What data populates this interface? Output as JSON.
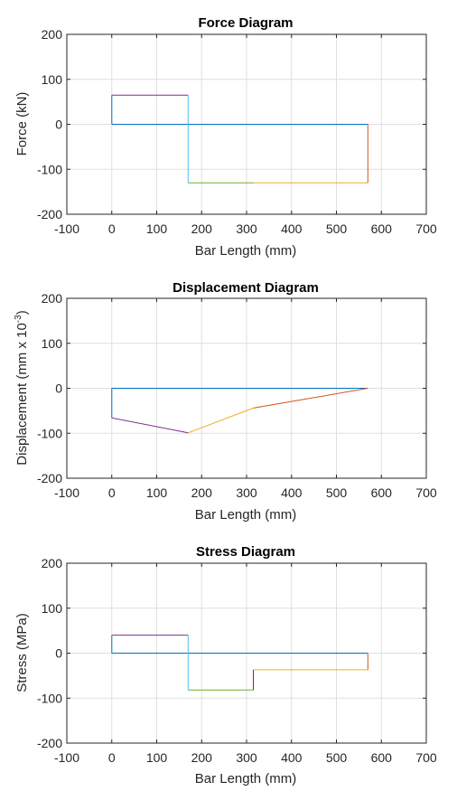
{
  "chart_data": [
    {
      "type": "line",
      "title": "Force Diagram",
      "xlabel": "Bar Length (mm)",
      "ylabel": "Force (kN)",
      "xlim": [
        -100,
        700
      ],
      "ylim": [
        -200,
        200
      ],
      "xticks": [
        "-100",
        "0",
        "100",
        "200",
        "300",
        "400",
        "500",
        "600",
        "700"
      ],
      "yticks": [
        "200",
        "100",
        "0",
        "-100",
        "-200"
      ],
      "grid": true,
      "series": [
        {
          "color": "#0072bd",
          "x": [
            0,
            570
          ],
          "y": [
            0,
            0
          ]
        },
        {
          "color": "#0072bd",
          "x": [
            0,
            0
          ],
          "y": [
            0,
            65
          ]
        },
        {
          "color": "#7e2f8e",
          "x": [
            0,
            170
          ],
          "y": [
            65,
            65
          ]
        },
        {
          "color": "#4dbeee",
          "x": [
            170,
            170
          ],
          "y": [
            65,
            -130
          ]
        },
        {
          "color": "#77ac30",
          "x": [
            170,
            315
          ],
          "y": [
            -130,
            -130
          ]
        },
        {
          "color": "#edb120",
          "x": [
            315,
            570
          ],
          "y": [
            -130,
            -130
          ]
        },
        {
          "color": "#d95319",
          "x": [
            570,
            570
          ],
          "y": [
            -130,
            0
          ]
        }
      ]
    },
    {
      "type": "line",
      "title": "Displacement Diagram",
      "xlabel": "Bar Length (mm)",
      "ylabel": "Displacement (mm x 10",
      "ylabel_sup": "-3",
      "ylabel_end": ")",
      "xlim": [
        -100,
        700
      ],
      "ylim": [
        -200,
        200
      ],
      "xticks": [
        "-100",
        "0",
        "100",
        "200",
        "300",
        "400",
        "500",
        "600",
        "700"
      ],
      "yticks": [
        "200",
        "100",
        "0",
        "-100",
        "-200"
      ],
      "grid": true,
      "series": [
        {
          "color": "#0072bd",
          "x": [
            0,
            570
          ],
          "y": [
            0,
            0
          ]
        },
        {
          "color": "#0072bd",
          "x": [
            0,
            0
          ],
          "y": [
            0,
            -66
          ]
        },
        {
          "color": "#7e2f8e",
          "x": [
            0,
            170
          ],
          "y": [
            -66,
            -99
          ]
        },
        {
          "color": "#edb120",
          "x": [
            170,
            315
          ],
          "y": [
            -99,
            -44
          ]
        },
        {
          "color": "#d95319",
          "x": [
            315,
            570
          ],
          "y": [
            -44,
            0
          ]
        }
      ]
    },
    {
      "type": "line",
      "title": "Stress Diagram",
      "xlabel": "Bar Length (mm)",
      "ylabel": "Stress (MPa)",
      "xlim": [
        -100,
        700
      ],
      "ylim": [
        -200,
        200
      ],
      "xticks": [
        "-100",
        "0",
        "100",
        "200",
        "300",
        "400",
        "500",
        "600",
        "700"
      ],
      "yticks": [
        "200",
        "100",
        "0",
        "-100",
        "-200"
      ],
      "grid": true,
      "series": [
        {
          "color": "#0072bd",
          "x": [
            0,
            570
          ],
          "y": [
            0,
            0
          ]
        },
        {
          "color": "#0072bd",
          "x": [
            0,
            0
          ],
          "y": [
            0,
            40
          ]
        },
        {
          "color": "#7e2f8e",
          "x": [
            0,
            170
          ],
          "y": [
            40,
            40
          ]
        },
        {
          "color": "#4dbeee",
          "x": [
            170,
            170
          ],
          "y": [
            40,
            -82
          ]
        },
        {
          "color": "#77ac30",
          "x": [
            170,
            315
          ],
          "y": [
            -82,
            -82
          ]
        },
        {
          "color": "#a2142f",
          "x": [
            315,
            315
          ],
          "y": [
            -82,
            -37
          ]
        },
        {
          "color": "#edb120",
          "x": [
            315,
            570
          ],
          "y": [
            -37,
            -37
          ]
        },
        {
          "color": "#d95319",
          "x": [
            570,
            570
          ],
          "y": [
            -37,
            0
          ]
        }
      ]
    }
  ]
}
